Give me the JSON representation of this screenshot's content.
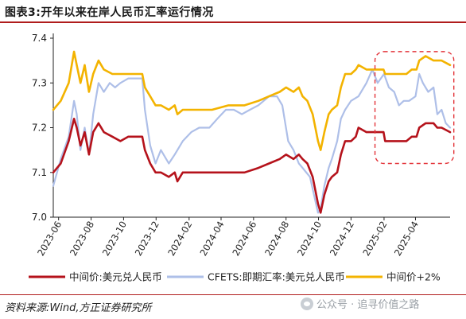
{
  "title": "图表3:开年以来在岸人民币汇率运行情况",
  "source": "资料来源:Wind,方正证券研究所",
  "watermark": "公众号 · 追寻价值之路",
  "colors": {
    "mid": "#b5121b",
    "cfets": "#aebfe8",
    "mid2": "#f3b300",
    "highlight": "#e3343a",
    "header_rule": "#b01c1c"
  },
  "chart_data": {
    "type": "line",
    "x_ticks": [
      "2023-06",
      "2023-08",
      "2023-10",
      "2023-12",
      "2024-02",
      "2024-04",
      "2024-06",
      "2024-08",
      "2024-10",
      "2024-12",
      "2025-02",
      "2025-04"
    ],
    "y_ticks": [
      "7.0",
      "7.1",
      "7.2",
      "7.3",
      "7.4"
    ],
    "ylim": [
      7.0,
      7.4
    ],
    "xlim": [
      "2023-05-22",
      "2025-06-05"
    ],
    "grid": false,
    "legend_position": "bottom",
    "highlight_region": {
      "x_start": "2025-01-15",
      "x_end": "2025-06-12",
      "y_min": 7.12,
      "y_max": 7.37,
      "style": "dashed rounded rectangle"
    },
    "series": [
      {
        "name": "中间价:美元兑人民币",
        "color": "#b5121b",
        "points": [
          [
            "2023-05-22",
            7.1
          ],
          [
            "2023-06-05",
            7.12
          ],
          [
            "2023-06-20",
            7.17
          ],
          [
            "2023-06-30",
            7.22
          ],
          [
            "2023-07-05",
            7.2
          ],
          [
            "2023-07-12",
            7.16
          ],
          [
            "2023-07-20",
            7.19
          ],
          [
            "2023-07-28",
            7.14
          ],
          [
            "2023-08-05",
            7.19
          ],
          [
            "2023-08-15",
            7.21
          ],
          [
            "2023-08-25",
            7.19
          ],
          [
            "2023-09-10",
            7.18
          ],
          [
            "2023-09-25",
            7.17
          ],
          [
            "2023-10-10",
            7.18
          ],
          [
            "2023-10-25",
            7.18
          ],
          [
            "2023-11-05",
            7.18
          ],
          [
            "2023-11-10",
            7.15
          ],
          [
            "2023-11-20",
            7.12
          ],
          [
            "2023-11-30",
            7.1
          ],
          [
            "2023-12-10",
            7.1
          ],
          [
            "2023-12-25",
            7.09
          ],
          [
            "2024-01-05",
            7.1
          ],
          [
            "2024-01-10",
            7.08
          ],
          [
            "2024-01-20",
            7.1
          ],
          [
            "2024-02-15",
            7.1
          ],
          [
            "2024-03-15",
            7.1
          ],
          [
            "2024-04-15",
            7.1
          ],
          [
            "2024-05-15",
            7.1
          ],
          [
            "2024-06-10",
            7.11
          ],
          [
            "2024-06-30",
            7.12
          ],
          [
            "2024-07-20",
            7.13
          ],
          [
            "2024-08-01",
            7.14
          ],
          [
            "2024-08-15",
            7.13
          ],
          [
            "2024-08-25",
            7.14
          ],
          [
            "2024-09-01",
            7.13
          ],
          [
            "2024-09-10",
            7.12
          ],
          [
            "2024-09-20",
            7.09
          ],
          [
            "2024-09-30",
            7.03
          ],
          [
            "2024-10-05",
            7.01
          ],
          [
            "2024-10-12",
            7.05
          ],
          [
            "2024-10-20",
            7.08
          ],
          [
            "2024-10-26",
            7.09
          ],
          [
            "2024-11-05",
            7.1
          ],
          [
            "2024-11-12",
            7.14
          ],
          [
            "2024-11-20",
            7.17
          ],
          [
            "2024-12-01",
            7.17
          ],
          [
            "2024-12-10",
            7.18
          ],
          [
            "2024-12-15",
            7.2
          ],
          [
            "2024-12-30",
            7.19
          ],
          [
            "2025-01-10",
            7.19
          ],
          [
            "2025-01-31",
            7.19
          ],
          [
            "2025-02-03",
            7.17
          ],
          [
            "2025-02-15",
            7.17
          ],
          [
            "2025-03-05",
            7.17
          ],
          [
            "2025-03-15",
            7.17
          ],
          [
            "2025-03-25",
            7.18
          ],
          [
            "2025-04-03",
            7.18
          ],
          [
            "2025-04-08",
            7.2
          ],
          [
            "2025-04-20",
            7.21
          ],
          [
            "2025-05-05",
            7.21
          ],
          [
            "2025-05-12",
            7.2
          ],
          [
            "2025-05-20",
            7.2
          ],
          [
            "2025-06-05",
            7.19
          ]
        ]
      },
      {
        "name": "CFETS:即期汇率:美元兑人民币",
        "color": "#aebfe8",
        "points": [
          [
            "2023-05-22",
            7.07
          ],
          [
            "2023-06-05",
            7.13
          ],
          [
            "2023-06-20",
            7.18
          ],
          [
            "2023-06-30",
            7.26
          ],
          [
            "2023-07-05",
            7.23
          ],
          [
            "2023-07-12",
            7.15
          ],
          [
            "2023-07-20",
            7.2
          ],
          [
            "2023-07-28",
            7.14
          ],
          [
            "2023-08-05",
            7.23
          ],
          [
            "2023-08-15",
            7.3
          ],
          [
            "2023-08-25",
            7.28
          ],
          [
            "2023-09-05",
            7.3
          ],
          [
            "2023-09-15",
            7.29
          ],
          [
            "2023-09-25",
            7.3
          ],
          [
            "2023-10-10",
            7.31
          ],
          [
            "2023-10-25",
            7.31
          ],
          [
            "2023-11-05",
            7.31
          ],
          [
            "2023-11-10",
            7.24
          ],
          [
            "2023-11-20",
            7.16
          ],
          [
            "2023-11-30",
            7.12
          ],
          [
            "2023-12-10",
            7.15
          ],
          [
            "2023-12-25",
            7.12
          ],
          [
            "2024-01-05",
            7.14
          ],
          [
            "2024-01-20",
            7.17
          ],
          [
            "2024-02-05",
            7.19
          ],
          [
            "2024-02-20",
            7.2
          ],
          [
            "2024-03-10",
            7.2
          ],
          [
            "2024-03-25",
            7.22
          ],
          [
            "2024-04-10",
            7.24
          ],
          [
            "2024-04-25",
            7.24
          ],
          [
            "2024-05-10",
            7.23
          ],
          [
            "2024-05-25",
            7.24
          ],
          [
            "2024-06-10",
            7.25
          ],
          [
            "2024-06-30",
            7.27
          ],
          [
            "2024-07-15",
            7.27
          ],
          [
            "2024-07-25",
            7.25
          ],
          [
            "2024-08-05",
            7.17
          ],
          [
            "2024-08-15",
            7.15
          ],
          [
            "2024-08-25",
            7.12
          ],
          [
            "2024-09-01",
            7.11
          ],
          [
            "2024-09-15",
            7.09
          ],
          [
            "2024-09-30",
            7.01
          ],
          [
            "2024-10-05",
            7.02
          ],
          [
            "2024-10-12",
            7.07
          ],
          [
            "2024-10-20",
            7.11
          ],
          [
            "2024-10-26",
            7.13
          ],
          [
            "2024-11-05",
            7.17
          ],
          [
            "2024-11-12",
            7.22
          ],
          [
            "2024-11-20",
            7.24
          ],
          [
            "2024-12-01",
            7.26
          ],
          [
            "2024-12-15",
            7.27
          ],
          [
            "2024-12-30",
            7.3
          ],
          [
            "2025-01-10",
            7.33
          ],
          [
            "2025-01-20",
            7.3
          ],
          [
            "2025-02-01",
            7.32
          ],
          [
            "2025-02-10",
            7.29
          ],
          [
            "2025-02-20",
            7.28
          ],
          [
            "2025-03-01",
            7.25
          ],
          [
            "2025-03-10",
            7.26
          ],
          [
            "2025-03-20",
            7.26
          ],
          [
            "2025-04-01",
            7.27
          ],
          [
            "2025-04-08",
            7.32
          ],
          [
            "2025-04-15",
            7.3
          ],
          [
            "2025-04-25",
            7.28
          ],
          [
            "2025-05-05",
            7.29
          ],
          [
            "2025-05-12",
            7.23
          ],
          [
            "2025-05-20",
            7.24
          ],
          [
            "2025-05-28",
            7.21
          ],
          [
            "2025-06-05",
            7.2
          ]
        ]
      },
      {
        "name": "中间价+2%",
        "color": "#f3b300",
        "points": [
          [
            "2023-05-22",
            7.24
          ],
          [
            "2023-06-05",
            7.26
          ],
          [
            "2023-06-20",
            7.3
          ],
          [
            "2023-06-30",
            7.37
          ],
          [
            "2023-07-05",
            7.34
          ],
          [
            "2023-07-12",
            7.3
          ],
          [
            "2023-07-20",
            7.34
          ],
          [
            "2023-07-28",
            7.28
          ],
          [
            "2023-08-05",
            7.32
          ],
          [
            "2023-08-15",
            7.35
          ],
          [
            "2023-08-25",
            7.33
          ],
          [
            "2023-09-10",
            7.32
          ],
          [
            "2023-09-25",
            7.32
          ],
          [
            "2023-10-10",
            7.32
          ],
          [
            "2023-10-25",
            7.32
          ],
          [
            "2023-11-05",
            7.32
          ],
          [
            "2023-11-10",
            7.29
          ],
          [
            "2023-11-20",
            7.27
          ],
          [
            "2023-11-30",
            7.25
          ],
          [
            "2023-12-10",
            7.25
          ],
          [
            "2023-12-25",
            7.24
          ],
          [
            "2024-01-05",
            7.25
          ],
          [
            "2024-01-10",
            7.23
          ],
          [
            "2024-01-20",
            7.24
          ],
          [
            "2024-02-15",
            7.24
          ],
          [
            "2024-03-15",
            7.24
          ],
          [
            "2024-04-15",
            7.25
          ],
          [
            "2024-05-15",
            7.25
          ],
          [
            "2024-06-10",
            7.26
          ],
          [
            "2024-06-30",
            7.27
          ],
          [
            "2024-07-20",
            7.28
          ],
          [
            "2024-08-01",
            7.29
          ],
          [
            "2024-08-15",
            7.28
          ],
          [
            "2024-08-25",
            7.29
          ],
          [
            "2024-09-01",
            7.27
          ],
          [
            "2024-09-10",
            7.26
          ],
          [
            "2024-09-20",
            7.23
          ],
          [
            "2024-09-30",
            7.17
          ],
          [
            "2024-10-05",
            7.15
          ],
          [
            "2024-10-12",
            7.19
          ],
          [
            "2024-10-20",
            7.23
          ],
          [
            "2024-10-26",
            7.24
          ],
          [
            "2024-11-05",
            7.25
          ],
          [
            "2024-11-12",
            7.29
          ],
          [
            "2024-11-20",
            7.32
          ],
          [
            "2024-12-01",
            7.32
          ],
          [
            "2024-12-10",
            7.33
          ],
          [
            "2024-12-15",
            7.34
          ],
          [
            "2024-12-30",
            7.33
          ],
          [
            "2025-01-10",
            7.33
          ],
          [
            "2025-01-31",
            7.33
          ],
          [
            "2025-02-03",
            7.32
          ],
          [
            "2025-02-15",
            7.32
          ],
          [
            "2025-03-05",
            7.32
          ],
          [
            "2025-03-15",
            7.32
          ],
          [
            "2025-03-25",
            7.33
          ],
          [
            "2025-04-03",
            7.33
          ],
          [
            "2025-04-08",
            7.35
          ],
          [
            "2025-04-20",
            7.36
          ],
          [
            "2025-05-05",
            7.35
          ],
          [
            "2025-05-12",
            7.35
          ],
          [
            "2025-05-20",
            7.35
          ],
          [
            "2025-06-05",
            7.34
          ]
        ]
      }
    ]
  }
}
